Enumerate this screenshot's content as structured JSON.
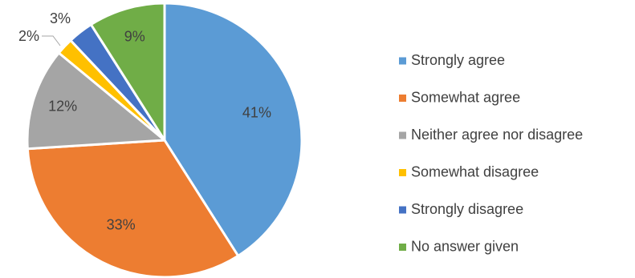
{
  "chart_data": {
    "type": "pie",
    "start_angle_deg": 0,
    "direction": "clockwise",
    "legend_position": "right",
    "slices": [
      {
        "label": "Strongly agree",
        "value": 41,
        "display": "41%",
        "color": "#5B9BD5"
      },
      {
        "label": "Somewhat agree",
        "value": 33,
        "display": "33%",
        "color": "#ED7D31"
      },
      {
        "label": "Neither agree nor disagree",
        "value": 12,
        "display": "12%",
        "color": "#A5A5A5"
      },
      {
        "label": "Somewhat disagree",
        "value": 2,
        "display": "2%",
        "color": "#FFC000"
      },
      {
        "label": "Strongly disagree",
        "value": 3,
        "display": "3%",
        "color": "#4472C4"
      },
      {
        "label": "No answer given",
        "value": 9,
        "display": "9%",
        "color": "#70AD47"
      }
    ]
  }
}
